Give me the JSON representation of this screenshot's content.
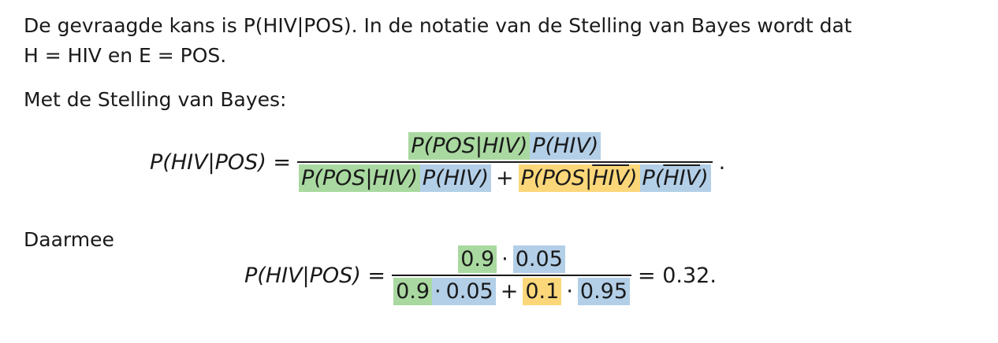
{
  "intro": {
    "line1": "De gevraagde kans is P(HIV|POS). In de notatie van de Stelling van Bayes wordt dat",
    "line2": "H = HIV en E = POS."
  },
  "bayes_intro": "Met de Stelling van Bayes:",
  "formula1": {
    "lhs": "P(HIV|POS) =",
    "num_green": "P(POS|HIV)",
    "num_blue": "P(HIV)",
    "den_green": "P(POS|HIV)",
    "den_blue1": "P(HIV)",
    "plus": "+",
    "den_yellow_pre": "P(POS|",
    "den_yellow_bar": "HIV",
    "den_yellow_post": ")",
    "den_blue2_pre": "P(",
    "den_blue2_bar": "HIV",
    "den_blue2_post": ")",
    "end": "."
  },
  "daarmee": "Daarmee",
  "formula2": {
    "lhs": "P(HIV|POS) =",
    "num_a": "0.9",
    "dot": "·",
    "num_b": "0.05",
    "den_a": "0.9",
    "den_b": "0.05",
    "plus": "+",
    "den_c": "0.1",
    "den_d": "0.95",
    "result": "= 0.32."
  },
  "colors": {
    "green": "#a9d9a0",
    "blue": "#b3cfe8",
    "yellow": "#fcd77a"
  }
}
